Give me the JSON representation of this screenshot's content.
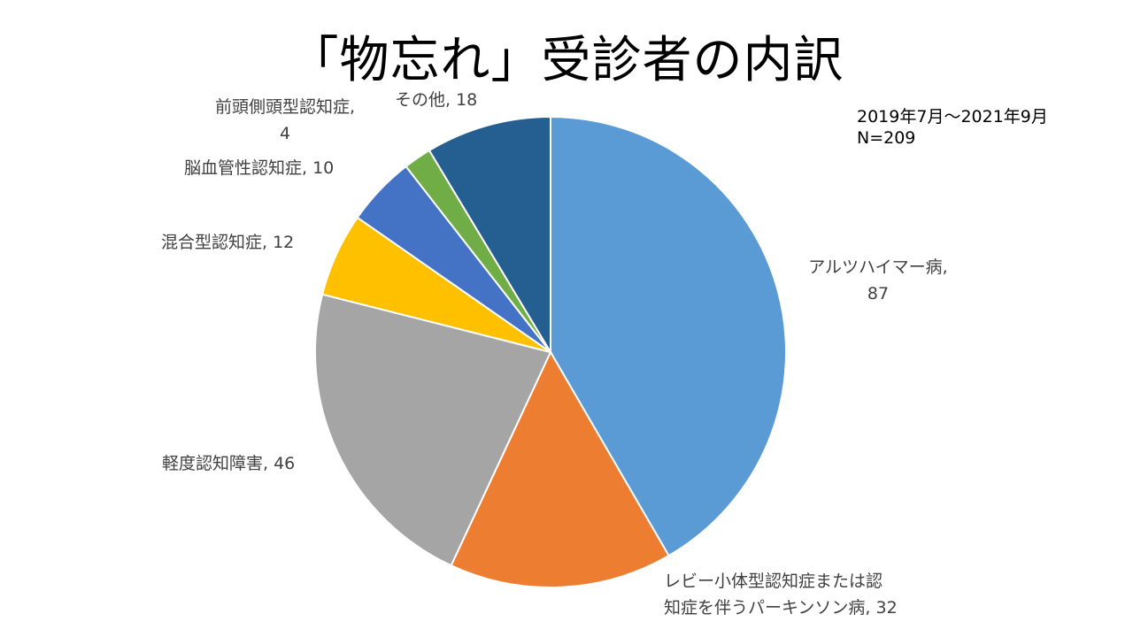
{
  "title": "「物忘れ」受診者の内訳",
  "notes": {
    "period": "2019年7月～2021年9月",
    "n": "N=209"
  },
  "chart_data": {
    "type": "pie",
    "title": "「物忘れ」受診者の内訳",
    "total": 209,
    "start_angle_deg": 0,
    "direction": "clockwise",
    "slices": [
      {
        "label": "アルツハイマー病",
        "value": 87,
        "color": "#5B9BD5",
        "display": [
          "アルツハイマー病,",
          "87"
        ]
      },
      {
        "label": "レビー小体型認知症または認知症を伴うパーキンソン病",
        "value": 32,
        "color": "#ED7D31",
        "display": [
          "レビー小体型認知症または認",
          "知症を伴うパーキンソン病, 32"
        ]
      },
      {
        "label": "軽度認知障害",
        "value": 46,
        "color": "#A5A5A5",
        "display": [
          "軽度認知障害, 46"
        ]
      },
      {
        "label": "混合型認知症",
        "value": 12,
        "color": "#FFC000",
        "display": [
          "混合型認知症, 12"
        ]
      },
      {
        "label": "脳血管性認知症",
        "value": 10,
        "color": "#4472C4",
        "display": [
          "脳血管性認知症, 10"
        ]
      },
      {
        "label": "前頭側頭型認知症",
        "value": 4,
        "color": "#70AD47",
        "display": [
          "前頭側頭型認知症,",
          "4"
        ]
      },
      {
        "label": "その他",
        "value": 18,
        "color": "#255E91",
        "display": [
          "その他, 18"
        ]
      }
    ]
  }
}
